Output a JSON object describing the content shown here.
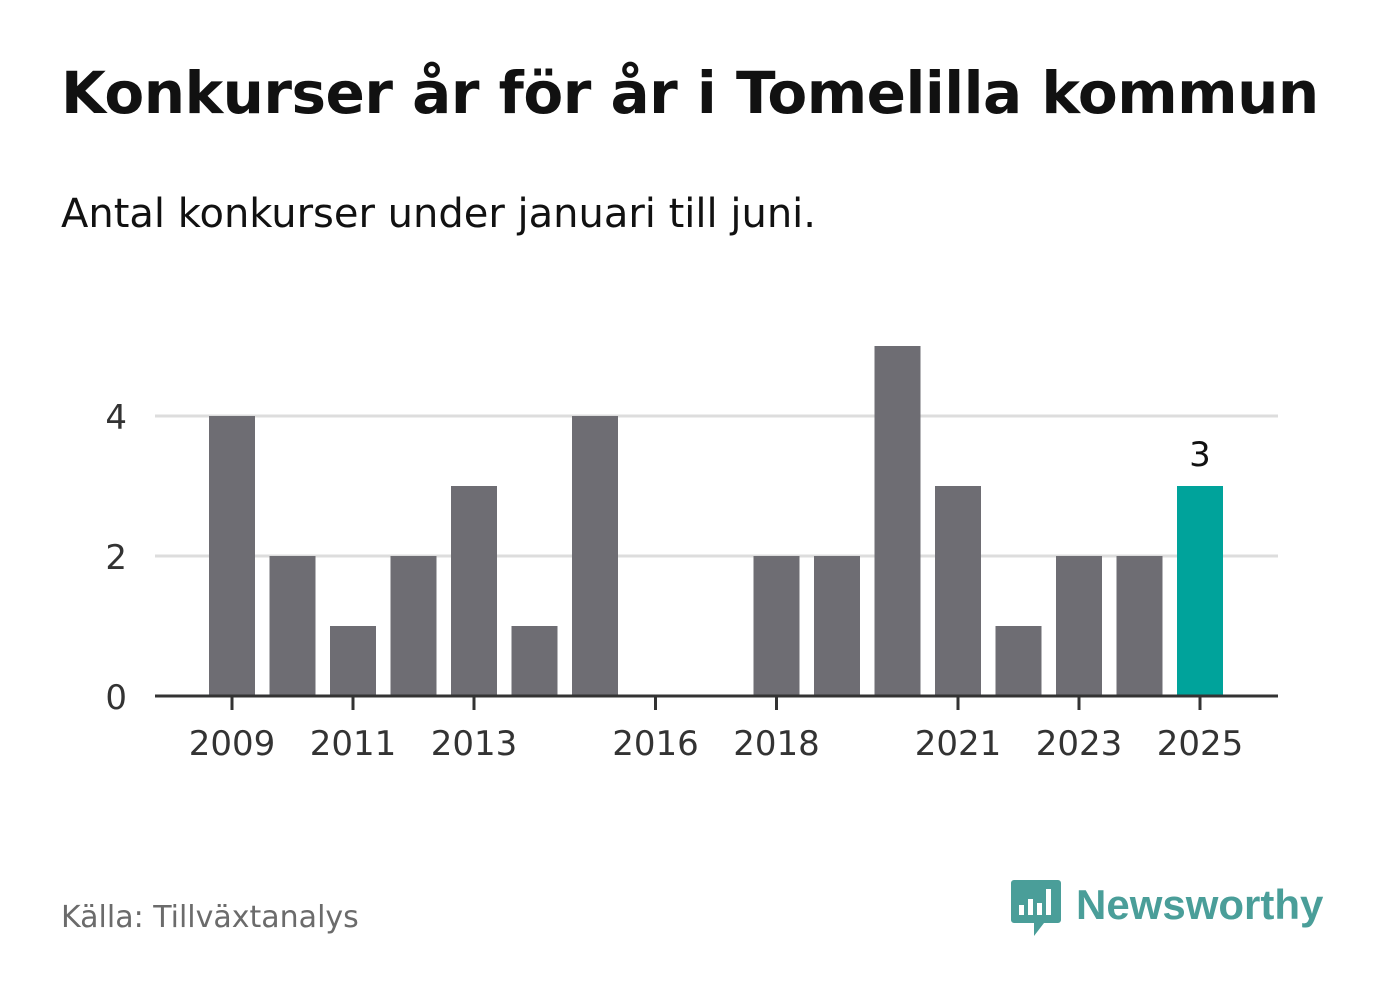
{
  "title": "Konkurser år för år i Tomelilla kommun",
  "subtitle": "Antal konkurser under januari till juni.",
  "source": "Källa: Tillväxtanalys",
  "brand": {
    "name": "Newsworthy",
    "logo_icon": "bar-chart-speech-bubble-icon",
    "color": "#4a9e99"
  },
  "colors": {
    "bar": "#6e6d73",
    "highlight": "#00a39b",
    "gridline": "#dddddd",
    "axis": "#333333"
  },
  "chart_data": {
    "type": "bar",
    "categories": [
      "2009",
      "2010",
      "2011",
      "2012",
      "2013",
      "2014",
      "2015",
      "2016",
      "2017",
      "2018",
      "2019",
      "2020",
      "2021",
      "2022",
      "2023",
      "2024",
      "2025"
    ],
    "values": [
      4,
      2,
      1,
      2,
      3,
      1,
      4,
      0,
      0,
      2,
      2,
      5,
      3,
      1,
      2,
      2,
      3
    ],
    "x_tick_labels": [
      "2009",
      "2011",
      "2013",
      "2016",
      "2018",
      "2021",
      "2023",
      "2025"
    ],
    "y_ticks": [
      0,
      2,
      4
    ],
    "ylim": [
      0,
      5.4
    ],
    "highlight_category": "2025",
    "highlight_label": "3",
    "grid": true,
    "legend": false
  }
}
